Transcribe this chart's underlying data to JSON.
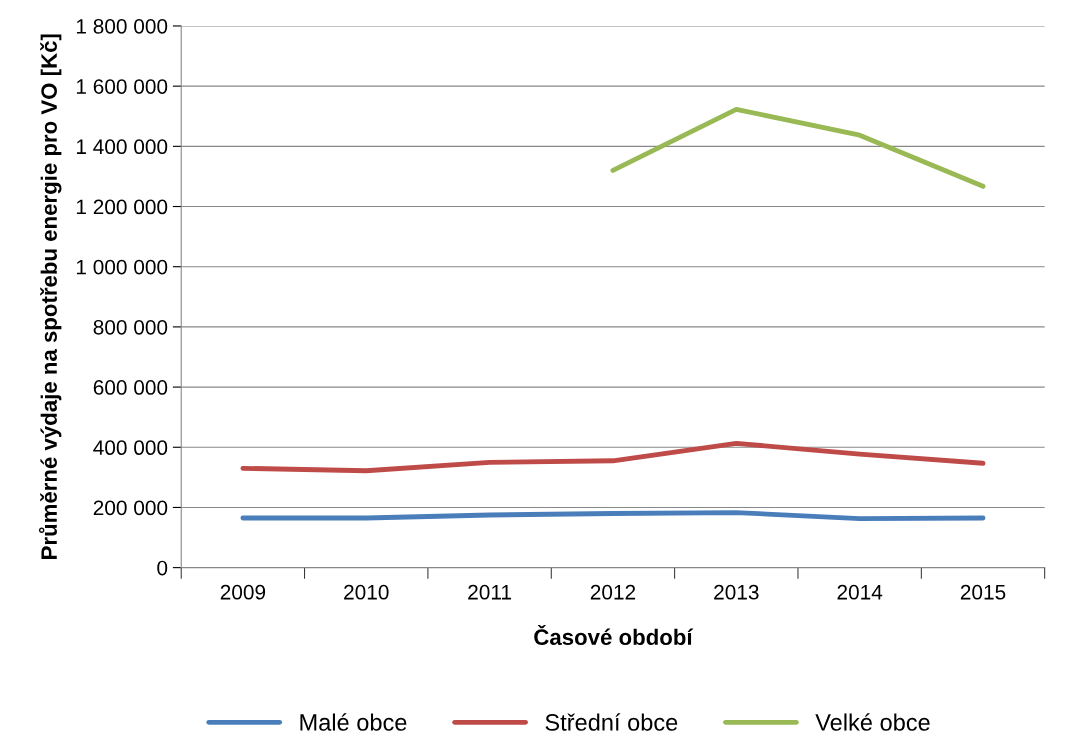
{
  "chart_data": {
    "type": "line",
    "xlabel": "Časové období",
    "ylabel": "Průměrné výdaje na spotřebu energie pro VO [Kč]",
    "categories": [
      "2009",
      "2010",
      "2011",
      "2012",
      "2013",
      "2014",
      "2015"
    ],
    "series": [
      {
        "name": "Malé obce",
        "color": "#4a7ebb",
        "values": [
          165000,
          165000,
          175000,
          180000,
          183000,
          163000,
          165000
        ]
      },
      {
        "name": "Střední obce",
        "color": "#be4b48",
        "values": [
          330000,
          322000,
          350000,
          355000,
          413000,
          377000,
          347000
        ]
      },
      {
        "name": "Velké obce",
        "color": "#98b954",
        "values": [
          null,
          null,
          null,
          1320000,
          1523000,
          1437000,
          1267000
        ]
      }
    ],
    "ylim": [
      0,
      1800000
    ],
    "yticks": [
      0,
      {
        "value": 200000,
        "label": "200 000"
      },
      {
        "value": 400000,
        "label": "400 000"
      },
      {
        "value": 600000,
        "label": "600 000"
      },
      {
        "value": 800000,
        "label": "800 000"
      },
      {
        "value": 1000000,
        "label": "1 000 000"
      },
      {
        "value": 1200000,
        "label": "1 200 000"
      },
      {
        "value": 1400000,
        "label": "1 400 000"
      },
      {
        "value": 1600000,
        "label": "1 600 000"
      },
      {
        "value": 1800000,
        "label": "1 800 000"
      }
    ],
    "grid": "y",
    "legend": "bottom",
    "marker": "none",
    "line_style": "solid"
  }
}
